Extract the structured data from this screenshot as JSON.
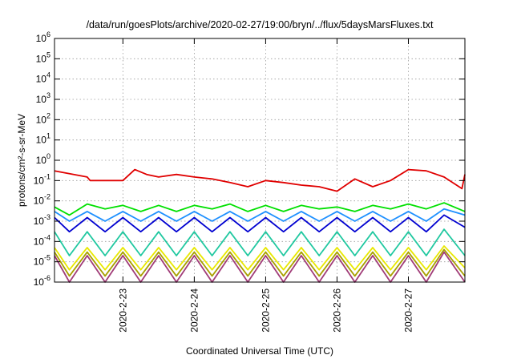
{
  "chart_data": {
    "type": "line",
    "title": "/data/run/goesPlots/archive/2020-02-27/19:00/bryn/../flux/5daysMarsFluxes.txt",
    "xlabel": "Coordinated Universal Time (UTC)",
    "ylabel": "protons/cm²-s-sr-MeV",
    "yscale": "log",
    "xlim": [
      "2020-02-22T01:00",
      "2020-02-27T19:00"
    ],
    "ylim": [
      1e-06,
      1000000.0
    ],
    "x_ticks": [
      "2020-2-23",
      "2020-2-24",
      "2020-2-25",
      "2020-2-26",
      "2020-2-27"
    ],
    "y_ticks": [
      {
        "base": "10",
        "exp": "-6",
        "value": 1e-06
      },
      {
        "base": "10",
        "exp": "-5",
        "value": 1e-05
      },
      {
        "base": "10",
        "exp": "-4",
        "value": 0.0001
      },
      {
        "base": "10",
        "exp": "-3",
        "value": 0.001
      },
      {
        "base": "10",
        "exp": "-2",
        "value": 0.01
      },
      {
        "base": "10",
        "exp": "-1",
        "value": 0.1
      },
      {
        "base": "10",
        "exp": "0",
        "value": 1
      },
      {
        "base": "10",
        "exp": "1",
        "value": 10
      },
      {
        "base": "10",
        "exp": "2",
        "value": 100
      },
      {
        "base": "10",
        "exp": "3",
        "value": 1000
      },
      {
        "base": "10",
        "exp": "4",
        "value": 10000
      },
      {
        "base": "10",
        "exp": "5",
        "value": 100000
      },
      {
        "base": "10",
        "exp": "6",
        "value": 1000000
      }
    ],
    "grid": true,
    "series": [
      {
        "color": "#e00000",
        "x": [
          "2020-02-22T01:00",
          "2020-02-22T12:00",
          "2020-02-22T13:00",
          "2020-02-23T00:00",
          "2020-02-23T04:00",
          "2020-02-23T08:00",
          "2020-02-23T12:00",
          "2020-02-23T18:00",
          "2020-02-24T00:00",
          "2020-02-24T06:00",
          "2020-02-24T12:00",
          "2020-02-24T18:00",
          "2020-02-25T00:00",
          "2020-02-25T06:00",
          "2020-02-25T12:00",
          "2020-02-25T18:00",
          "2020-02-26T00:00",
          "2020-02-26T06:00",
          "2020-02-26T12:00",
          "2020-02-26T18:00",
          "2020-02-27T00:00",
          "2020-02-27T06:00",
          "2020-02-27T12:00",
          "2020-02-27T18:00",
          "2020-02-27T19:00"
        ],
        "values": [
          0.3,
          0.15,
          0.1,
          0.1,
          0.35,
          0.2,
          0.15,
          0.2,
          0.15,
          0.12,
          0.08,
          0.05,
          0.1,
          0.08,
          0.06,
          0.05,
          0.03,
          0.12,
          0.05,
          0.1,
          0.35,
          0.3,
          0.15,
          0.04,
          0.2
        ]
      },
      {
        "color": "#00e000",
        "x": [
          "2020-02-22T01:00",
          "2020-02-22T06:00",
          "2020-02-22T12:00",
          "2020-02-22T18:00",
          "2020-02-23T00:00",
          "2020-02-23T06:00",
          "2020-02-23T12:00",
          "2020-02-23T18:00",
          "2020-02-24T00:00",
          "2020-02-24T06:00",
          "2020-02-24T12:00",
          "2020-02-24T18:00",
          "2020-02-25T00:00",
          "2020-02-25T06:00",
          "2020-02-25T12:00",
          "2020-02-25T18:00",
          "2020-02-26T00:00",
          "2020-02-26T06:00",
          "2020-02-26T12:00",
          "2020-02-26T18:00",
          "2020-02-27T00:00",
          "2020-02-27T06:00",
          "2020-02-27T12:00",
          "2020-02-27T19:00"
        ],
        "values": [
          0.005,
          0.002,
          0.007,
          0.004,
          0.006,
          0.003,
          0.006,
          0.003,
          0.006,
          0.004,
          0.007,
          0.003,
          0.006,
          0.003,
          0.006,
          0.004,
          0.005,
          0.003,
          0.006,
          0.004,
          0.007,
          0.004,
          0.008,
          0.003
        ]
      },
      {
        "color": "#1e90ff",
        "x": [
          "2020-02-22T01:00",
          "2020-02-22T06:00",
          "2020-02-22T12:00",
          "2020-02-22T18:00",
          "2020-02-23T00:00",
          "2020-02-23T06:00",
          "2020-02-23T12:00",
          "2020-02-23T18:00",
          "2020-02-24T00:00",
          "2020-02-24T06:00",
          "2020-02-24T12:00",
          "2020-02-24T18:00",
          "2020-02-25T00:00",
          "2020-02-25T06:00",
          "2020-02-25T12:00",
          "2020-02-25T18:00",
          "2020-02-26T00:00",
          "2020-02-26T06:00",
          "2020-02-26T12:00",
          "2020-02-26T18:00",
          "2020-02-27T00:00",
          "2020-02-27T06:00",
          "2020-02-27T12:00",
          "2020-02-27T19:00"
        ],
        "values": [
          0.003,
          0.001,
          0.003,
          0.001,
          0.003,
          0.001,
          0.003,
          0.001,
          0.003,
          0.001,
          0.003,
          0.001,
          0.003,
          0.001,
          0.003,
          0.001,
          0.003,
          0.001,
          0.003,
          0.001,
          0.003,
          0.001,
          0.004,
          0.002
        ]
      },
      {
        "color": "#0000d0",
        "x": [
          "2020-02-22T01:00",
          "2020-02-22T06:00",
          "2020-02-22T12:00",
          "2020-02-22T18:00",
          "2020-02-23T00:00",
          "2020-02-23T06:00",
          "2020-02-23T12:00",
          "2020-02-23T18:00",
          "2020-02-24T00:00",
          "2020-02-24T06:00",
          "2020-02-24T12:00",
          "2020-02-24T18:00",
          "2020-02-25T00:00",
          "2020-02-25T06:00",
          "2020-02-25T12:00",
          "2020-02-25T18:00",
          "2020-02-26T00:00",
          "2020-02-26T06:00",
          "2020-02-26T12:00",
          "2020-02-26T18:00",
          "2020-02-27T00:00",
          "2020-02-27T06:00",
          "2020-02-27T12:00",
          "2020-02-27T19:00"
        ],
        "values": [
          0.0015,
          0.0003,
          0.0015,
          0.0003,
          0.0015,
          0.0003,
          0.0015,
          0.0003,
          0.0015,
          0.0003,
          0.0015,
          0.0003,
          0.0015,
          0.0003,
          0.0015,
          0.0003,
          0.0015,
          0.0003,
          0.0015,
          0.0003,
          0.0015,
          0.0003,
          0.002,
          0.0005
        ]
      },
      {
        "color": "#20c8a0",
        "x": [
          "2020-02-22T01:00",
          "2020-02-22T06:00",
          "2020-02-22T12:00",
          "2020-02-22T18:00",
          "2020-02-23T00:00",
          "2020-02-23T06:00",
          "2020-02-23T12:00",
          "2020-02-23T18:00",
          "2020-02-24T00:00",
          "2020-02-24T06:00",
          "2020-02-24T12:00",
          "2020-02-24T18:00",
          "2020-02-25T00:00",
          "2020-02-25T06:00",
          "2020-02-25T12:00",
          "2020-02-25T18:00",
          "2020-02-26T00:00",
          "2020-02-26T06:00",
          "2020-02-26T12:00",
          "2020-02-26T18:00",
          "2020-02-27T00:00",
          "2020-02-27T06:00",
          "2020-02-27T12:00",
          "2020-02-27T19:00"
        ],
        "values": [
          0.0003,
          2e-05,
          0.0003,
          2e-05,
          0.0003,
          2e-05,
          0.0003,
          2e-05,
          0.0003,
          2e-05,
          0.0003,
          2e-05,
          0.0003,
          2e-05,
          0.0003,
          2e-05,
          0.0003,
          2e-05,
          0.0003,
          2e-05,
          0.0003,
          2e-05,
          0.0004,
          2e-05
        ]
      },
      {
        "color": "#e8e800",
        "x": [
          "2020-02-22T01:00",
          "2020-02-22T06:00",
          "2020-02-22T12:00",
          "2020-02-22T18:00",
          "2020-02-23T00:00",
          "2020-02-23T06:00",
          "2020-02-23T12:00",
          "2020-02-23T18:00",
          "2020-02-24T00:00",
          "2020-02-24T06:00",
          "2020-02-24T12:00",
          "2020-02-24T18:00",
          "2020-02-25T00:00",
          "2020-02-25T06:00",
          "2020-02-25T12:00",
          "2020-02-25T18:00",
          "2020-02-26T00:00",
          "2020-02-26T06:00",
          "2020-02-26T12:00",
          "2020-02-26T18:00",
          "2020-02-27T00:00",
          "2020-02-27T06:00",
          "2020-02-27T12:00",
          "2020-02-27T19:00"
        ],
        "values": [
          5e-05,
          4e-06,
          5e-05,
          4e-06,
          5e-05,
          4e-06,
          5e-05,
          4e-06,
          5e-05,
          4e-06,
          5e-05,
          4e-06,
          5e-05,
          4e-06,
          5e-05,
          4e-06,
          5e-05,
          4e-06,
          5e-05,
          4e-06,
          5e-05,
          4e-06,
          6e-05,
          5e-06
        ]
      },
      {
        "color": "#a8a000",
        "x": [
          "2020-02-22T01:00",
          "2020-02-22T06:00",
          "2020-02-22T12:00",
          "2020-02-22T18:00",
          "2020-02-23T00:00",
          "2020-02-23T06:00",
          "2020-02-23T12:00",
          "2020-02-23T18:00",
          "2020-02-24T00:00",
          "2020-02-24T06:00",
          "2020-02-24T12:00",
          "2020-02-24T18:00",
          "2020-02-25T00:00",
          "2020-02-25T06:00",
          "2020-02-25T12:00",
          "2020-02-25T18:00",
          "2020-02-26T00:00",
          "2020-02-26T06:00",
          "2020-02-26T12:00",
          "2020-02-26T18:00",
          "2020-02-27T00:00",
          "2020-02-27T06:00",
          "2020-02-27T12:00",
          "2020-02-27T19:00"
        ],
        "values": [
          3e-05,
          2e-06,
          3e-05,
          2e-06,
          3e-05,
          2e-06,
          3e-05,
          2e-06,
          3e-05,
          2e-06,
          3e-05,
          2e-06,
          3e-05,
          2e-06,
          3e-05,
          2e-06,
          3e-05,
          2e-06,
          3e-05,
          2e-06,
          3e-05,
          2e-06,
          4e-05,
          2e-06
        ]
      },
      {
        "color": "#a03c78",
        "x": [
          "2020-02-22T01:00",
          "2020-02-22T06:00",
          "2020-02-22T12:00",
          "2020-02-22T18:00",
          "2020-02-23T00:00",
          "2020-02-23T06:00",
          "2020-02-23T12:00",
          "2020-02-23T18:00",
          "2020-02-24T00:00",
          "2020-02-24T06:00",
          "2020-02-24T12:00",
          "2020-02-24T18:00",
          "2020-02-25T00:00",
          "2020-02-25T06:00",
          "2020-02-25T12:00",
          "2020-02-25T18:00",
          "2020-02-26T00:00",
          "2020-02-26T06:00",
          "2020-02-26T12:00",
          "2020-02-26T18:00",
          "2020-02-27T00:00",
          "2020-02-27T06:00",
          "2020-02-27T12:00",
          "2020-02-27T19:00"
        ],
        "values": [
          2e-05,
          1e-06,
          2e-05,
          1e-06,
          2e-05,
          1e-06,
          2e-05,
          1e-06,
          2e-05,
          1e-06,
          2e-05,
          1e-06,
          2e-05,
          1e-06,
          2e-05,
          1e-06,
          2e-05,
          1e-06,
          2e-05,
          1e-06,
          2e-05,
          1e-06,
          3e-05,
          1e-06
        ]
      }
    ]
  }
}
